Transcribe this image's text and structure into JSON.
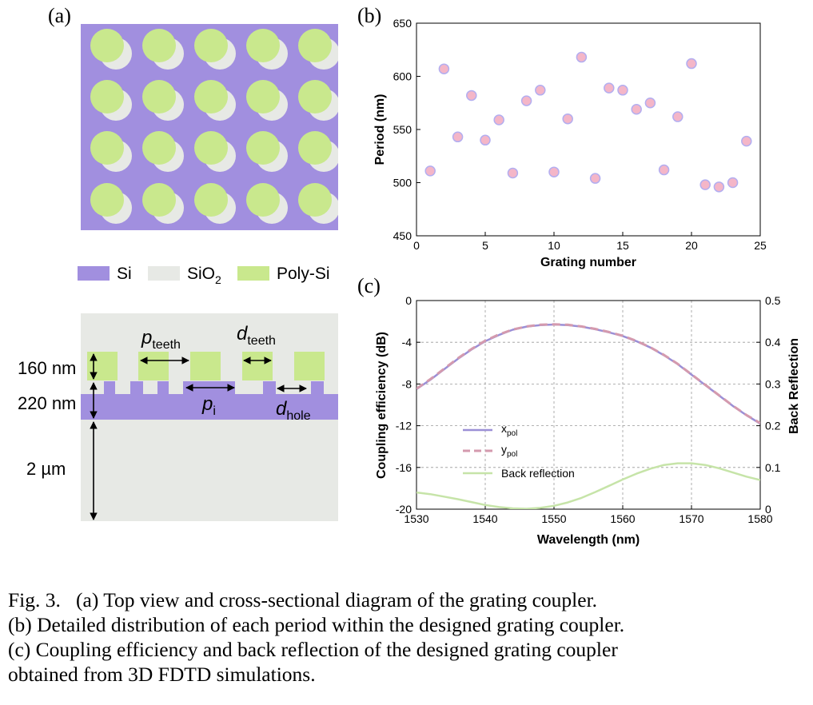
{
  "panel_a": {
    "label": "(a)",
    "legend": [
      {
        "name": "Si",
        "color": "#a18fdf"
      },
      {
        "name": "SiO",
        "sub": "2",
        "color": "#e7e9e5"
      },
      {
        "name": "Poly-Si",
        "color": "#c9e88d"
      }
    ],
    "cross_section": {
      "p_teeth": {
        "main": "p",
        "sub": "teeth"
      },
      "d_teeth": {
        "main": "d",
        "sub": "teeth"
      },
      "p_i": {
        "main": "p",
        "sub": "i"
      },
      "d_hole": {
        "main": "d",
        "sub": "hole"
      },
      "h_poly": "160 nm",
      "h_si": "220 nm",
      "h_box": "2 µm"
    }
  },
  "chart_data": [
    {
      "panel": "(b)",
      "type": "scatter",
      "title": "",
      "xlabel": "Grating number",
      "ylabel": "Period (nm)",
      "xlim": [
        0,
        25
      ],
      "ylim": [
        450,
        650
      ],
      "xticks": [
        0,
        5,
        10,
        15,
        20,
        25
      ],
      "yticks": [
        450,
        500,
        550,
        600,
        650
      ],
      "grid": false,
      "marker_color": "#f4b6c8",
      "marker_edge": "#b3aef0",
      "x": [
        1,
        2,
        3,
        4,
        5,
        6,
        7,
        8,
        9,
        10,
        11,
        12,
        13,
        14,
        15,
        16,
        17,
        18,
        19,
        20,
        21,
        22,
        23,
        24
      ],
      "y": [
        511,
        607,
        543,
        582,
        540,
        559,
        509,
        577,
        587,
        510,
        560,
        618,
        504,
        589,
        587,
        569,
        575,
        512,
        562,
        612,
        498,
        496,
        500,
        539
      ]
    },
    {
      "panel": "(c)",
      "type": "line",
      "title": "",
      "xlabel": "Wavelength (nm)",
      "ylabel": "Coupling efficiency (dB)",
      "y2label": "Back Reflection",
      "xlim": [
        1530,
        1580
      ],
      "ylim": [
        -20,
        0
      ],
      "y2lim": [
        0,
        0.5
      ],
      "xticks": [
        1530,
        1540,
        1550,
        1560,
        1570,
        1580
      ],
      "yticks": [
        -20,
        -16,
        -12,
        -8,
        -4,
        0
      ],
      "y2ticks": [
        0,
        0.1,
        0.2,
        0.3,
        0.4,
        0.5
      ],
      "grid": true,
      "x": [
        1530,
        1532,
        1534,
        1536,
        1538,
        1540,
        1542,
        1544,
        1546,
        1548,
        1550,
        1552,
        1554,
        1556,
        1558,
        1560,
        1562,
        1564,
        1566,
        1568,
        1570,
        1572,
        1574,
        1576,
        1578,
        1580
      ],
      "series": [
        {
          "name": "x",
          "sub": "pol",
          "axis": "left",
          "style": "solid",
          "color": "#9b8fd6",
          "values": [
            -8.5,
            -7.6,
            -6.6,
            -5.6,
            -4.7,
            -3.9,
            -3.3,
            -2.8,
            -2.5,
            -2.35,
            -2.3,
            -2.35,
            -2.5,
            -2.75,
            -3.05,
            -3.4,
            -3.9,
            -4.5,
            -5.25,
            -6.1,
            -7.1,
            -8.1,
            -9.1,
            -10.1,
            -11.0,
            -11.8
          ]
        },
        {
          "name": "y",
          "sub": "pol",
          "axis": "left",
          "style": "dashed",
          "color": "#d49aae",
          "values": [
            -8.45,
            -7.55,
            -6.55,
            -5.55,
            -4.65,
            -3.85,
            -3.25,
            -2.78,
            -2.48,
            -2.32,
            -2.28,
            -2.32,
            -2.48,
            -2.72,
            -3.02,
            -3.38,
            -3.88,
            -4.48,
            -5.22,
            -6.08,
            -7.08,
            -8.08,
            -9.08,
            -10.08,
            -10.98,
            -11.75
          ]
        },
        {
          "name": "Back reflection",
          "axis": "right",
          "style": "solid",
          "color": "#c6e4a8",
          "values": [
            0.04,
            0.036,
            0.03,
            0.024,
            0.017,
            0.01,
            0.005,
            0.002,
            0.001,
            0.003,
            0.008,
            0.016,
            0.027,
            0.041,
            0.056,
            0.071,
            0.085,
            0.097,
            0.106,
            0.11,
            0.11,
            0.106,
            0.098,
            0.088,
            0.078,
            0.07
          ]
        }
      ]
    }
  ],
  "caption": {
    "line1": "Fig. 3.   (a) Top view and cross-sectional diagram of the grating coupler.",
    "line2": "(b) Detailed distribution of each period within the designed grating coupler.",
    "line3": "(c) Coupling efficiency and back reflection of the designed grating coupler",
    "line4": "obtained from 3D FDTD simulations."
  }
}
